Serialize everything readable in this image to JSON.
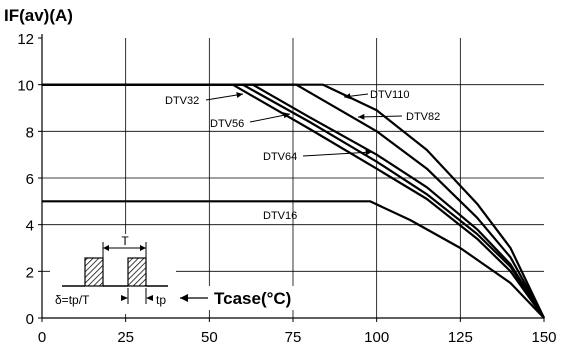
{
  "chart_data": {
    "type": "line",
    "y_axis_title": "IF(av)(A)",
    "x_axis_title": "Tcase(°C)",
    "xlim": [
      0,
      150
    ],
    "ylim": [
      0,
      12
    ],
    "x_ticks": [
      "0",
      "25",
      "50",
      "75",
      "100",
      "125",
      "150"
    ],
    "y_ticks": [
      "0",
      "2",
      "4",
      "6",
      "8",
      "10",
      "12"
    ],
    "grid": true,
    "series": [
      {
        "name": "DTV110",
        "points": [
          [
            0,
            10
          ],
          [
            84,
            10
          ],
          [
            100,
            8.9
          ],
          [
            115,
            7.2
          ],
          [
            130,
            4.9
          ],
          [
            140,
            3.0
          ],
          [
            150,
            0
          ]
        ]
      },
      {
        "name": "DTV82",
        "points": [
          [
            0,
            10
          ],
          [
            76,
            10
          ],
          [
            100,
            8.0
          ],
          [
            115,
            6.4
          ],
          [
            130,
            4.3
          ],
          [
            140,
            2.6
          ],
          [
            150,
            0
          ]
        ]
      },
      {
        "name": "DTV64",
        "points": [
          [
            0,
            10
          ],
          [
            63,
            10
          ],
          [
            80,
            8.6
          ],
          [
            100,
            7.0
          ],
          [
            115,
            5.6
          ],
          [
            130,
            3.8
          ],
          [
            140,
            2.3
          ],
          [
            150,
            0
          ]
        ]
      },
      {
        "name": "DTV56",
        "points": [
          [
            0,
            10
          ],
          [
            60,
            10
          ],
          [
            80,
            8.4
          ],
          [
            100,
            6.7
          ],
          [
            115,
            5.3
          ],
          [
            130,
            3.6
          ],
          [
            140,
            2.2
          ],
          [
            150,
            0
          ]
        ]
      },
      {
        "name": "DTV32",
        "points": [
          [
            0,
            10
          ],
          [
            57,
            10
          ],
          [
            80,
            8.1
          ],
          [
            100,
            6.4
          ],
          [
            115,
            5.1
          ],
          [
            130,
            3.4
          ],
          [
            140,
            2.0
          ],
          [
            150,
            0
          ]
        ]
      },
      {
        "name": "DTV16",
        "points": [
          [
            0,
            5
          ],
          [
            98,
            5
          ],
          [
            110,
            4.2
          ],
          [
            125,
            3.0
          ],
          [
            140,
            1.5
          ],
          [
            150,
            0
          ]
        ]
      }
    ],
    "annotations": {
      "series_labels": [
        "DTV32",
        "DTV56",
        "DTV110",
        "DTV82",
        "DTV64",
        "DTV16"
      ],
      "inset": {
        "period_label": "T",
        "duty_label": "δ=tp/T",
        "pulse_label": "tp"
      }
    },
    "colors": {
      "line": "#000000",
      "grid": "#000000",
      "background": "#ffffff"
    }
  }
}
